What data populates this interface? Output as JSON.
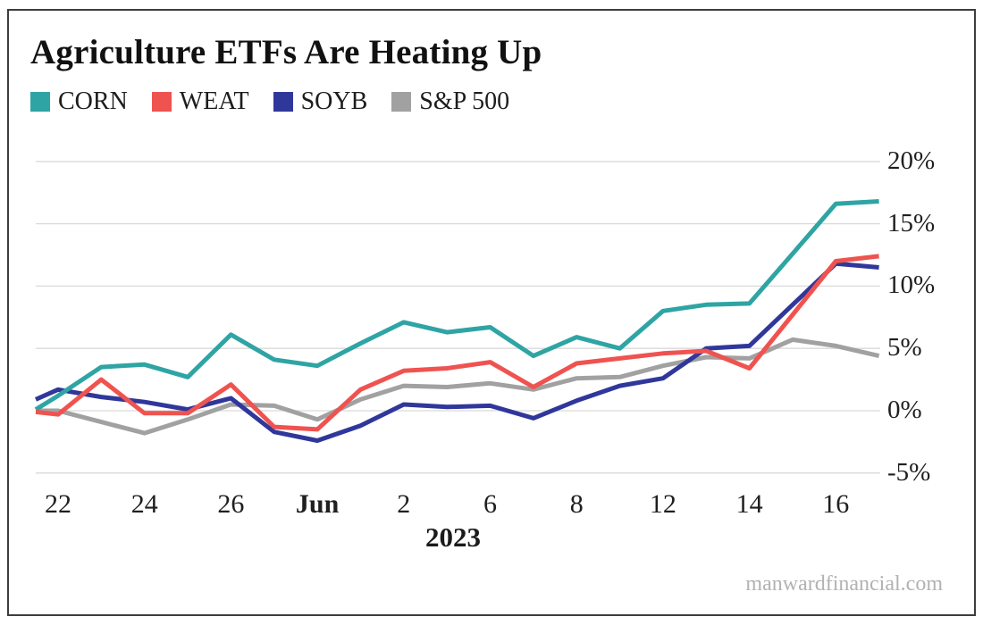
{
  "title": "Agriculture ETFs Are Heating Up",
  "watermark": "manwardfinancial.com",
  "chart_data": {
    "type": "line",
    "title": "Agriculture ETFs Are Heating Up",
    "year_label": "2023",
    "ylim": [
      -5,
      20
    ],
    "grid": "horizontal-only",
    "legend_position": "top-left",
    "y_axis_side": "right",
    "y_ticks": [
      {
        "label": "20%",
        "value": 20
      },
      {
        "label": "15%",
        "value": 15
      },
      {
        "label": "10%",
        "value": 10
      },
      {
        "label": "5%",
        "value": 5
      },
      {
        "label": "0%",
        "value": 0
      },
      {
        "label": "-5%",
        "value": -5
      }
    ],
    "x_ticks": [
      {
        "label": "22",
        "index": 1,
        "bold": false
      },
      {
        "label": "24",
        "index": 3,
        "bold": false
      },
      {
        "label": "26",
        "index": 5,
        "bold": false
      },
      {
        "label": "Jun",
        "index": 7,
        "bold": true
      },
      {
        "label": "2",
        "index": 9,
        "bold": false
      },
      {
        "label": "6",
        "index": 11,
        "bold": false
      },
      {
        "label": "8",
        "index": 13,
        "bold": false
      },
      {
        "label": "12",
        "index": 15,
        "bold": false
      },
      {
        "label": "14",
        "index": 17,
        "bold": false
      },
      {
        "label": "16",
        "index": 19,
        "bold": false
      }
    ],
    "series": [
      {
        "name": "CORN",
        "color": "#2FA4A4",
        "values": [
          0.1,
          1.2,
          3.5,
          3.7,
          2.7,
          6.1,
          4.1,
          3.6,
          5.4,
          7.1,
          6.3,
          6.7,
          4.4,
          5.9,
          5.0,
          8.0,
          8.5,
          8.6,
          12.6,
          16.6,
          16.8
        ]
      },
      {
        "name": "WEAT",
        "color": "#EF5350",
        "values": [
          -0.1,
          -0.3,
          2.5,
          -0.2,
          -0.2,
          2.1,
          -1.3,
          -1.5,
          1.7,
          3.2,
          3.4,
          3.9,
          1.9,
          3.8,
          4.2,
          4.6,
          4.8,
          3.4,
          7.7,
          12.0,
          12.4
        ]
      },
      {
        "name": "SOYB",
        "color": "#30379B",
        "values": [
          0.9,
          1.7,
          1.1,
          0.7,
          0.1,
          1.0,
          -1.7,
          -2.4,
          -1.2,
          0.5,
          0.3,
          0.4,
          -0.6,
          0.8,
          2.0,
          2.6,
          5.0,
          5.2,
          8.5,
          11.8,
          11.5
        ]
      },
      {
        "name": "S&P 500",
        "color": "#A1A1A1",
        "values": [
          0.0,
          0.0,
          -0.9,
          -1.8,
          -0.7,
          0.5,
          0.4,
          -0.7,
          0.9,
          2.0,
          1.9,
          2.2,
          1.7,
          2.6,
          2.7,
          3.6,
          4.3,
          4.2,
          5.7,
          5.2,
          4.4
        ]
      }
    ],
    "draw_order": [
      "S&P 500",
      "SOYB",
      "CORN",
      "WEAT"
    ],
    "gridline_color": "#d9d9d9",
    "line_width": 5
  }
}
